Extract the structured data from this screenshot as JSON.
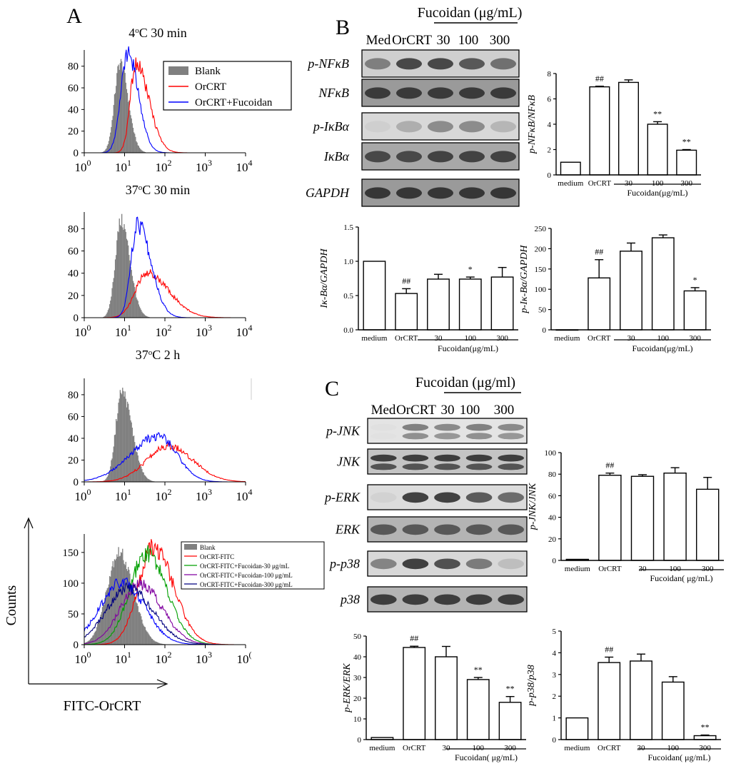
{
  "panels": {
    "A": "A",
    "B": "B",
    "C": "C"
  },
  "flow": {
    "y_axis_title": "Counts",
    "x_axis_title": "FITC-OrCRT",
    "x_ticks": [
      "10",
      "10",
      "10",
      "10",
      "10"
    ],
    "x_tick_exponents": [
      "0",
      "1",
      "2",
      "3",
      "4"
    ],
    "last_exponent_clipped": "(",
    "y_ticks_small": [
      "0",
      "20",
      "40",
      "60",
      "80"
    ],
    "y_ticks_large": [
      "0",
      "50",
      "100",
      "150"
    ],
    "histograms": [
      {
        "title": "4oC  30 min",
        "legend": [
          "Blank",
          "OrCRT",
          "OrCRT+Fucoidan"
        ]
      },
      {
        "title": "37oC  30 min",
        "legend": []
      },
      {
        "title": "37oC  2 h",
        "legend": []
      },
      {
        "title": "",
        "legend": [
          "Blank",
          "OrCRT-FITC",
          "OrCRT-FITC+Fucoidan-30  μg/mL",
          "OrCRT-FITC+Fucoidan-100 μg/mL",
          "OrCRT-FITC+Fucoidan-300 μg/mL"
        ]
      }
    ]
  },
  "colors": {
    "blank": "#808080",
    "red": "#ff0000",
    "blue": "#0000ff",
    "green": "#00a000",
    "purple": "#8000a0",
    "navy": "#000080"
  },
  "blot_B": {
    "header": "Fucoidan (μg/mL)",
    "lanes": [
      "Med",
      "OrCRT",
      "30",
      "100",
      "300"
    ],
    "rows": [
      "p-NFκB",
      "NFκB",
      "p-IκBα",
      "IκBα",
      "GAPDH"
    ]
  },
  "blot_C": {
    "header": "Fucoidan  (μg/ml)",
    "lanes": [
      "Med",
      "OrCRT",
      "30",
      "100",
      "300"
    ],
    "rows": [
      "p-JNK",
      "JNK",
      "p-ERK",
      "ERK",
      "p-p38",
      "p38"
    ]
  },
  "chart_data": [
    {
      "type": "bar",
      "panel": "B",
      "ylabel": "p-NFκB/NFκB",
      "ylim": [
        0,
        8
      ],
      "categories": [
        "medium",
        "OrCRT",
        "30",
        "100",
        "300"
      ],
      "values": [
        1.0,
        6.95,
        7.3,
        4.0,
        1.95
      ],
      "errors": [
        0,
        0.05,
        0.2,
        0.2,
        0.05
      ],
      "annotations": [
        "",
        "##",
        "",
        "**",
        "**"
      ],
      "yticks": [
        "0",
        "2",
        "4",
        "6",
        "8"
      ],
      "group_label": "Fucoidan(μg/mL)"
    },
    {
      "type": "bar",
      "panel": "B",
      "ylabel": "Iκ-Bα/GAPDH",
      "ylim": [
        0,
        1.5
      ],
      "categories": [
        "medium",
        "OrCRT",
        "30",
        "100",
        "300"
      ],
      "values": [
        1.0,
        0.53,
        0.74,
        0.74,
        0.77
      ],
      "errors": [
        0,
        0.07,
        0.07,
        0.03,
        0.14
      ],
      "annotations": [
        "",
        "##",
        "",
        "*",
        ""
      ],
      "yticks": [
        "0.0",
        "0.5",
        "1.0",
        "1.5"
      ],
      "group_label": "Fucoidan(μg/mL)"
    },
    {
      "type": "bar",
      "panel": "B",
      "ylabel": "p-Iκ-Bα/GAPDH",
      "ylim": [
        0,
        250
      ],
      "categories": [
        "medium",
        "OrCRT",
        "30",
        "100",
        "300"
      ],
      "values": [
        0,
        128,
        194,
        227,
        96
      ],
      "errors": [
        0,
        45,
        20,
        7,
        8
      ],
      "annotations": [
        "",
        "##",
        "",
        "",
        "*"
      ],
      "yticks": [
        "0",
        "50",
        "100",
        "150",
        "200",
        "250"
      ],
      "group_label": "Fucoidan(μg/mL)"
    },
    {
      "type": "bar",
      "panel": "C",
      "ylabel": "p-JNK/JNK",
      "ylim": [
        0,
        100
      ],
      "categories": [
        "medium",
        "OrCRT",
        "30",
        "100",
        "300"
      ],
      "values": [
        1,
        79,
        78,
        81,
        66
      ],
      "errors": [
        0,
        2,
        1.5,
        5,
        11
      ],
      "annotations": [
        "",
        "##",
        "",
        "",
        ""
      ],
      "yticks": [
        "0",
        "20",
        "40",
        "60",
        "80",
        "100"
      ],
      "group_label": "Fucoidan( μg/mL)"
    },
    {
      "type": "bar",
      "panel": "C",
      "ylabel": "p-ERK/ERK",
      "ylim": [
        0,
        50
      ],
      "categories": [
        "medium",
        "OrCRT",
        "30",
        "100",
        "300"
      ],
      "values": [
        1,
        44.5,
        40,
        29,
        18
      ],
      "errors": [
        0,
        0.6,
        5,
        1,
        2.8
      ],
      "annotations": [
        "",
        "##",
        "",
        "**",
        "**"
      ],
      "yticks": [
        "0",
        "10",
        "20",
        "30",
        "40",
        "50"
      ],
      "group_label": "Fucoidan( μg/mL)"
    },
    {
      "type": "bar",
      "panel": "C",
      "ylabel": "p-p38/p38",
      "ylim": [
        0,
        5
      ],
      "categories": [
        "medium",
        "OrCRT",
        "30",
        "100",
        "300"
      ],
      "values": [
        1,
        3.55,
        3.62,
        2.65,
        0.18
      ],
      "errors": [
        0,
        0.25,
        0.32,
        0.25,
        0.03
      ],
      "annotations": [
        "",
        "##",
        "",
        "",
        "**"
      ],
      "yticks": [
        "0",
        "1",
        "2",
        "3",
        "4",
        "5"
      ],
      "group_label": "Fucoidan( μg/mL)"
    }
  ]
}
